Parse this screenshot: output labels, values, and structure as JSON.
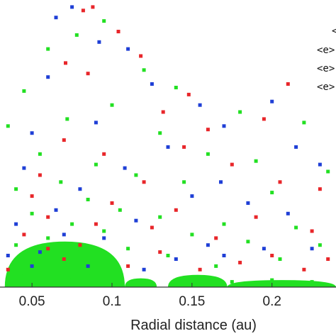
{
  "chart_data": {
    "type": "scatter",
    "title": "",
    "xlabel": "Radial distance (au)",
    "ylabel": "",
    "xlim": [
      0.03,
      0.24
    ],
    "ylim": [
      0,
      0.82
    ],
    "x_ticks": [
      0.05,
      0.1,
      0.15,
      0.2
    ],
    "x_tick_labels": [
      "0.05",
      "0.1",
      "0.15",
      "0.2"
    ],
    "grid": false,
    "legend": {
      "placement": "top-right",
      "entries": [
        "<",
        "<e>",
        "<e>",
        "<e>"
      ],
      "colors": [
        "#000000",
        "#000000",
        "#000000",
        "#000000"
      ]
    },
    "series": [
      {
        "color": "#e8262a",
        "values": [
          [
            0.082,
            0.79
          ],
          [
            0.088,
            0.8
          ],
          [
            0.104,
            0.73
          ],
          [
            0.118,
            0.66
          ],
          [
            0.071,
            0.64
          ],
          [
            0.085,
            0.61
          ],
          [
            0.148,
            0.55
          ],
          [
            0.132,
            0.5
          ],
          [
            0.21,
            0.58
          ],
          [
            0.195,
            0.48
          ],
          [
            0.16,
            0.45
          ],
          [
            0.07,
            0.42
          ],
          [
            0.095,
            0.38
          ],
          [
            0.145,
            0.4
          ],
          [
            0.175,
            0.35
          ],
          [
            0.12,
            0.3
          ],
          [
            0.205,
            0.3
          ],
          [
            0.23,
            0.28
          ],
          [
            0.055,
            0.32
          ],
          [
            0.1,
            0.24
          ],
          [
            0.14,
            0.22
          ],
          [
            0.19,
            0.2
          ],
          [
            0.225,
            0.16
          ],
          [
            0.165,
            0.14
          ],
          [
            0.06,
            0.2
          ],
          [
            0.045,
            0.15
          ],
          [
            0.08,
            0.12
          ],
          [
            0.13,
            0.1
          ],
          [
            0.2,
            0.09
          ],
          [
            0.235,
            0.08
          ],
          [
            0.035,
            0.05
          ],
          [
            0.11,
            0.06
          ],
          [
            0.155,
            0.05
          ],
          [
            0.18,
            0.07
          ],
          [
            0.22,
            0.05
          ],
          [
            0.07,
            0.08
          ],
          [
            0.05,
            0.26
          ],
          [
            0.09,
            0.18
          ],
          [
            0.125,
            0.17
          ],
          [
            0.06,
            0.11
          ]
        ]
      },
      {
        "color": "#1f3fd6",
        "values": [
          [
            0.075,
            0.8
          ],
          [
            0.065,
            0.77
          ],
          [
            0.092,
            0.7
          ],
          [
            0.11,
            0.68
          ],
          [
            0.06,
            0.6
          ],
          [
            0.125,
            0.58
          ],
          [
            0.155,
            0.52
          ],
          [
            0.17,
            0.46
          ],
          [
            0.2,
            0.53
          ],
          [
            0.09,
            0.47
          ],
          [
            0.05,
            0.44
          ],
          [
            0.135,
            0.4
          ],
          [
            0.215,
            0.4
          ],
          [
            0.23,
            0.35
          ],
          [
            0.108,
            0.34
          ],
          [
            0.168,
            0.3
          ],
          [
            0.045,
            0.34
          ],
          [
            0.08,
            0.28
          ],
          [
            0.15,
            0.26
          ],
          [
            0.185,
            0.24
          ],
          [
            0.21,
            0.21
          ],
          [
            0.065,
            0.22
          ],
          [
            0.115,
            0.19
          ],
          [
            0.04,
            0.18
          ],
          [
            0.095,
            0.14
          ],
          [
            0.16,
            0.12
          ],
          [
            0.195,
            0.11
          ],
          [
            0.055,
            0.1
          ],
          [
            0.14,
            0.08
          ],
          [
            0.225,
            0.11
          ],
          [
            0.085,
            0.06
          ],
          [
            0.035,
            0.09
          ],
          [
            0.12,
            0.05
          ],
          [
            0.17,
            0.09
          ],
          [
            0.05,
            0.06
          ],
          [
            0.07,
            0.15
          ]
        ]
      },
      {
        "color": "#22e022",
        "values": [
          [
            0.095,
            0.76
          ],
          [
            0.078,
            0.72
          ],
          [
            0.06,
            0.68
          ],
          [
            0.12,
            0.62
          ],
          [
            0.14,
            0.57
          ],
          [
            0.045,
            0.56
          ],
          [
            0.1,
            0.52
          ],
          [
            0.18,
            0.5
          ],
          [
            0.22,
            0.47
          ],
          [
            0.072,
            0.48
          ],
          [
            0.035,
            0.46
          ],
          [
            0.13,
            0.44
          ],
          [
            0.16,
            0.38
          ],
          [
            0.19,
            0.36
          ],
          [
            0.235,
            0.33
          ],
          [
            0.055,
            0.38
          ],
          [
            0.09,
            0.35
          ],
          [
            0.115,
            0.32
          ],
          [
            0.145,
            0.3
          ],
          [
            0.2,
            0.27
          ],
          [
            0.04,
            0.28
          ],
          [
            0.068,
            0.3
          ],
          [
            0.085,
            0.25
          ],
          [
            0.105,
            0.22
          ],
          [
            0.13,
            0.2
          ],
          [
            0.17,
            0.18
          ],
          [
            0.215,
            0.17
          ],
          [
            0.05,
            0.21
          ],
          [
            0.075,
            0.18
          ],
          [
            0.095,
            0.16
          ],
          [
            0.15,
            0.15
          ],
          [
            0.185,
            0.13
          ],
          [
            0.23,
            0.12
          ],
          [
            0.04,
            0.12
          ],
          [
            0.06,
            0.14
          ],
          [
            0.08,
            0.1
          ],
          [
            0.11,
            0.11
          ],
          [
            0.135,
            0.09
          ],
          [
            0.205,
            0.08
          ],
          [
            0.055,
            0.07
          ],
          [
            0.065,
            0.05
          ],
          [
            0.1,
            0.07
          ],
          [
            0.165,
            0.06
          ],
          [
            0.045,
            0.04
          ],
          [
            0.075,
            0.03
          ],
          [
            0.09,
            0.02
          ],
          [
            0.12,
            0.015
          ],
          [
            0.15,
            0.02
          ],
          [
            0.175,
            0.015
          ],
          [
            0.2,
            0.02
          ],
          [
            0.225,
            0.015
          ],
          [
            0.06,
            0.02
          ],
          [
            0.035,
            0.02
          ],
          [
            0.085,
            0.04
          ]
        ]
      }
    ],
    "dense_bands": [
      {
        "x_from": 0.033,
        "x_to": 0.108,
        "y_max": 0.13
      },
      {
        "x_from": 0.108,
        "x_to": 0.128,
        "y_max": 0.025
      },
      {
        "x_from": 0.135,
        "x_to": 0.172,
        "y_max": 0.035
      },
      {
        "x_from": 0.172,
        "x_to": 0.24,
        "y_max": 0.02
      }
    ]
  }
}
